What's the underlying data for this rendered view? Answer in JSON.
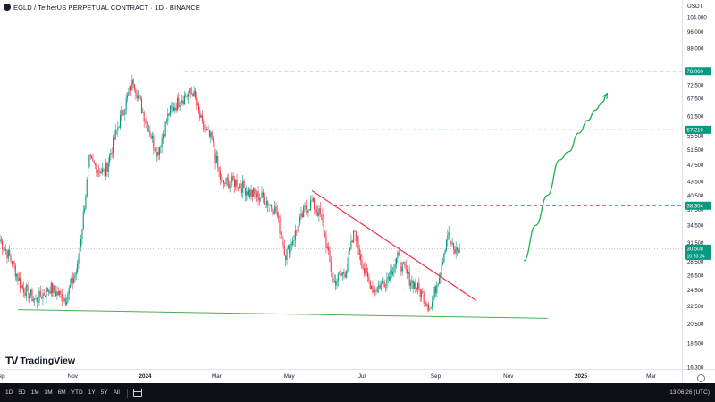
{
  "header": {
    "title": "EGLD / TetherUS PERPETUAL CONTRACT · 1D · BINANCE",
    "currency": "USDT"
  },
  "logo": {
    "text": "TradingView"
  },
  "bottom": {
    "timeframes": [
      "1D",
      "5D",
      "1M",
      "3M",
      "6M",
      "YTD",
      "1Y",
      "5Y",
      "All"
    ],
    "clock": "13:06:26 (UTC)"
  },
  "chart_data": {
    "type": "candlestick",
    "scale": "log",
    "ylim": [
      16.3,
      104
    ],
    "y_ticks": [
      "104.000",
      "96.000",
      "88.000",
      "78.060",
      "72.500",
      "67.500",
      "61.500",
      "57.210",
      "55.500",
      "51.500",
      "47.500",
      "43.500",
      "40.500",
      "38.304",
      "37.500",
      "34.500",
      "31.500",
      "28.500",
      "26.500",
      "24.500",
      "22.500",
      "20.500",
      "18.500",
      "16.300"
    ],
    "y_tick_values": [
      104,
      96,
      88,
      78.06,
      72.5,
      67.5,
      61.5,
      57.21,
      55.5,
      51.5,
      47.5,
      43.5,
      40.5,
      38.304,
      37.5,
      34.5,
      31.5,
      28.5,
      26.5,
      24.5,
      22.5,
      20.5,
      18.5,
      16.3
    ],
    "x_labels": [
      "Sep",
      "Nov",
      "2024",
      "Mar",
      "May",
      "Jul",
      "Sep",
      "Nov",
      "2025",
      "Mar"
    ],
    "x_label_days": [
      0,
      61,
      122,
      182,
      243,
      304,
      366,
      427,
      488,
      547
    ],
    "x_start": "2023-08-23",
    "colors": {
      "up": "#089981",
      "down": "#f23645",
      "level": "#089981",
      "support": "#4caf50",
      "trend": "#f23645",
      "projection": "#22b14c"
    },
    "price_levels": [
      {
        "value": 78.06,
        "label": "78.060",
        "from_day": 155
      },
      {
        "value": 57.21,
        "label": "57.210",
        "from_day": 173
      },
      {
        "value": 38.304,
        "label": "38.304",
        "from_day": 280
      }
    ],
    "current_price": {
      "value": 30.508,
      "label": "30.508",
      "countdown": "10:53:34"
    },
    "support_line": [
      {
        "day": 15,
        "value": 22.1
      },
      {
        "day": 460,
        "value": 21.1
      }
    ],
    "trend_line": [
      {
        "day": 262,
        "value": 41.5
      },
      {
        "day": 400,
        "value": 23.2
      }
    ],
    "projection": [
      {
        "day": 440,
        "value": 28.6
      },
      {
        "day": 450,
        "value": 34.5
      },
      {
        "day": 460,
        "value": 40.5
      },
      {
        "day": 470,
        "value": 48.8
      },
      {
        "day": 478,
        "value": 51.0
      },
      {
        "day": 486,
        "value": 56.2
      },
      {
        "day": 494,
        "value": 60.2
      },
      {
        "day": 500,
        "value": 63.5
      },
      {
        "day": 506,
        "value": 66.2
      },
      {
        "day": 510,
        "value": 69.3
      }
    ],
    "anchors": [
      {
        "day": 0,
        "value": 32
      },
      {
        "day": 10,
        "value": 28.5
      },
      {
        "day": 18,
        "value": 25
      },
      {
        "day": 30,
        "value": 23.2
      },
      {
        "day": 42,
        "value": 24.8
      },
      {
        "day": 55,
        "value": 23.4
      },
      {
        "day": 65,
        "value": 27.5
      },
      {
        "day": 75,
        "value": 48.5
      },
      {
        "day": 88,
        "value": 45.5
      },
      {
        "day": 100,
        "value": 59.5
      },
      {
        "day": 112,
        "value": 74.5
      },
      {
        "day": 120,
        "value": 63
      },
      {
        "day": 132,
        "value": 50.5
      },
      {
        "day": 142,
        "value": 62.5
      },
      {
        "day": 152,
        "value": 67.5
      },
      {
        "day": 162,
        "value": 70
      },
      {
        "day": 170,
        "value": 58.5
      },
      {
        "day": 178,
        "value": 54
      },
      {
        "day": 186,
        "value": 43
      },
      {
        "day": 198,
        "value": 43.5
      },
      {
        "day": 210,
        "value": 41
      },
      {
        "day": 222,
        "value": 39.8
      },
      {
        "day": 232,
        "value": 37.2
      },
      {
        "day": 240,
        "value": 29.5
      },
      {
        "day": 248,
        "value": 33
      },
      {
        "day": 256,
        "value": 37.5
      },
      {
        "day": 262,
        "value": 39
      },
      {
        "day": 270,
        "value": 36
      },
      {
        "day": 280,
        "value": 25.5
      },
      {
        "day": 290,
        "value": 27
      },
      {
        "day": 298,
        "value": 33.5
      },
      {
        "day": 306,
        "value": 27
      },
      {
        "day": 314,
        "value": 24.5
      },
      {
        "day": 324,
        "value": 25.8
      },
      {
        "day": 334,
        "value": 29
      },
      {
        "day": 344,
        "value": 26
      },
      {
        "day": 352,
        "value": 24.5
      },
      {
        "day": 362,
        "value": 22.4
      },
      {
        "day": 370,
        "value": 27.5
      },
      {
        "day": 376,
        "value": 33.2
      },
      {
        "day": 381,
        "value": 30
      },
      {
        "day": 386,
        "value": 30.5
      }
    ]
  }
}
